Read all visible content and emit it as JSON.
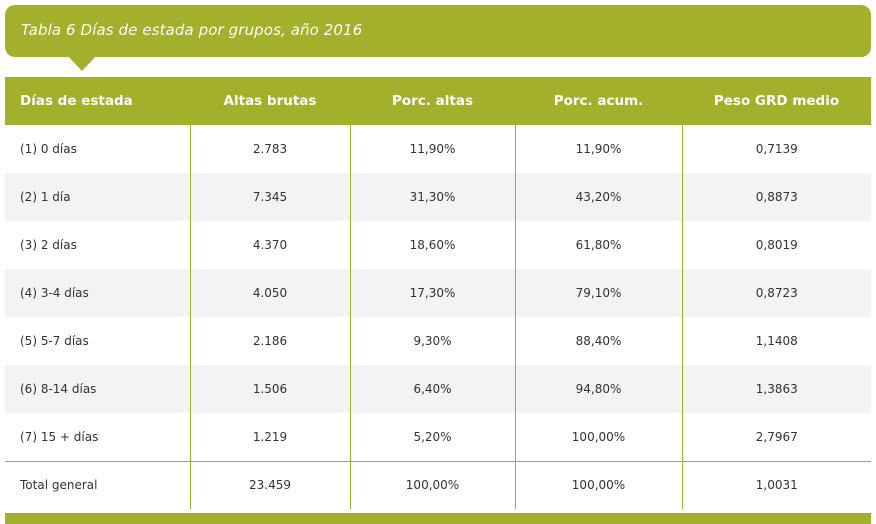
{
  "title": "Tabla 6 Días de estada por grupos, año 2016",
  "colors": {
    "accent": "#a2b02c",
    "row_alt": "#f3f3f3",
    "text": "#333333"
  },
  "table": {
    "headers": [
      "Días de estada",
      "Altas brutas",
      "Porc. altas",
      "Porc. acum.",
      "Peso GRD medio"
    ],
    "rows": [
      [
        "(1) 0 días",
        "2.783",
        "11,90%",
        "11,90%",
        "0,7139"
      ],
      [
        "(2) 1 día",
        "7.345",
        "31,30%",
        "43,20%",
        "0,8873"
      ],
      [
        "(3) 2 días",
        "4.370",
        "18,60%",
        "61,80%",
        "0,8019"
      ],
      [
        "(4) 3-4 días",
        "4.050",
        "17,30%",
        "79,10%",
        "0,8723"
      ],
      [
        "(5) 5-7 días",
        "2.186",
        "9,30%",
        "88,40%",
        "1,1408"
      ],
      [
        "(6) 8-14 días",
        "1.506",
        "6,40%",
        "94,80%",
        "1,3863"
      ],
      [
        "(7) 15 + días",
        "1.219",
        "5,20%",
        "100,00%",
        "2,7967"
      ]
    ],
    "total": [
      "Total general",
      "23.459",
      "100,00%",
      "100,00%",
      "1,0031"
    ]
  }
}
